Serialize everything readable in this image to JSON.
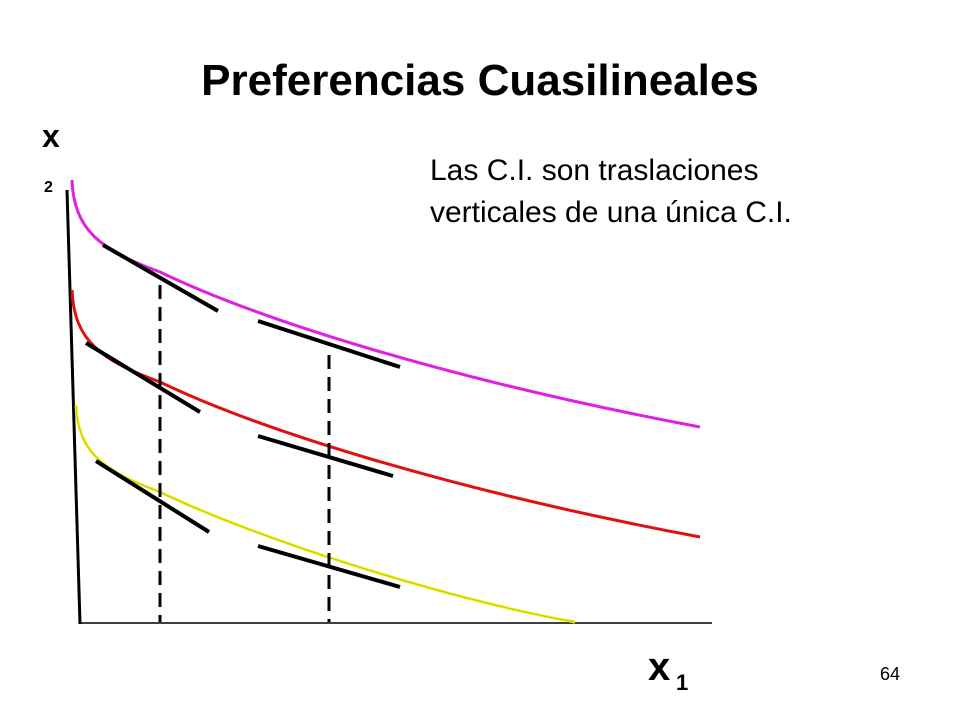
{
  "title": "Preferencias Cuasilineales",
  "axis_y": {
    "main": "x",
    "sub": "2"
  },
  "axis_x": {
    "main": "x",
    "sub": "1"
  },
  "note": {
    "line1": "Las C.I. son traslaciones",
    "line2": "verticales de una única C.I."
  },
  "page_number": "64"
}
